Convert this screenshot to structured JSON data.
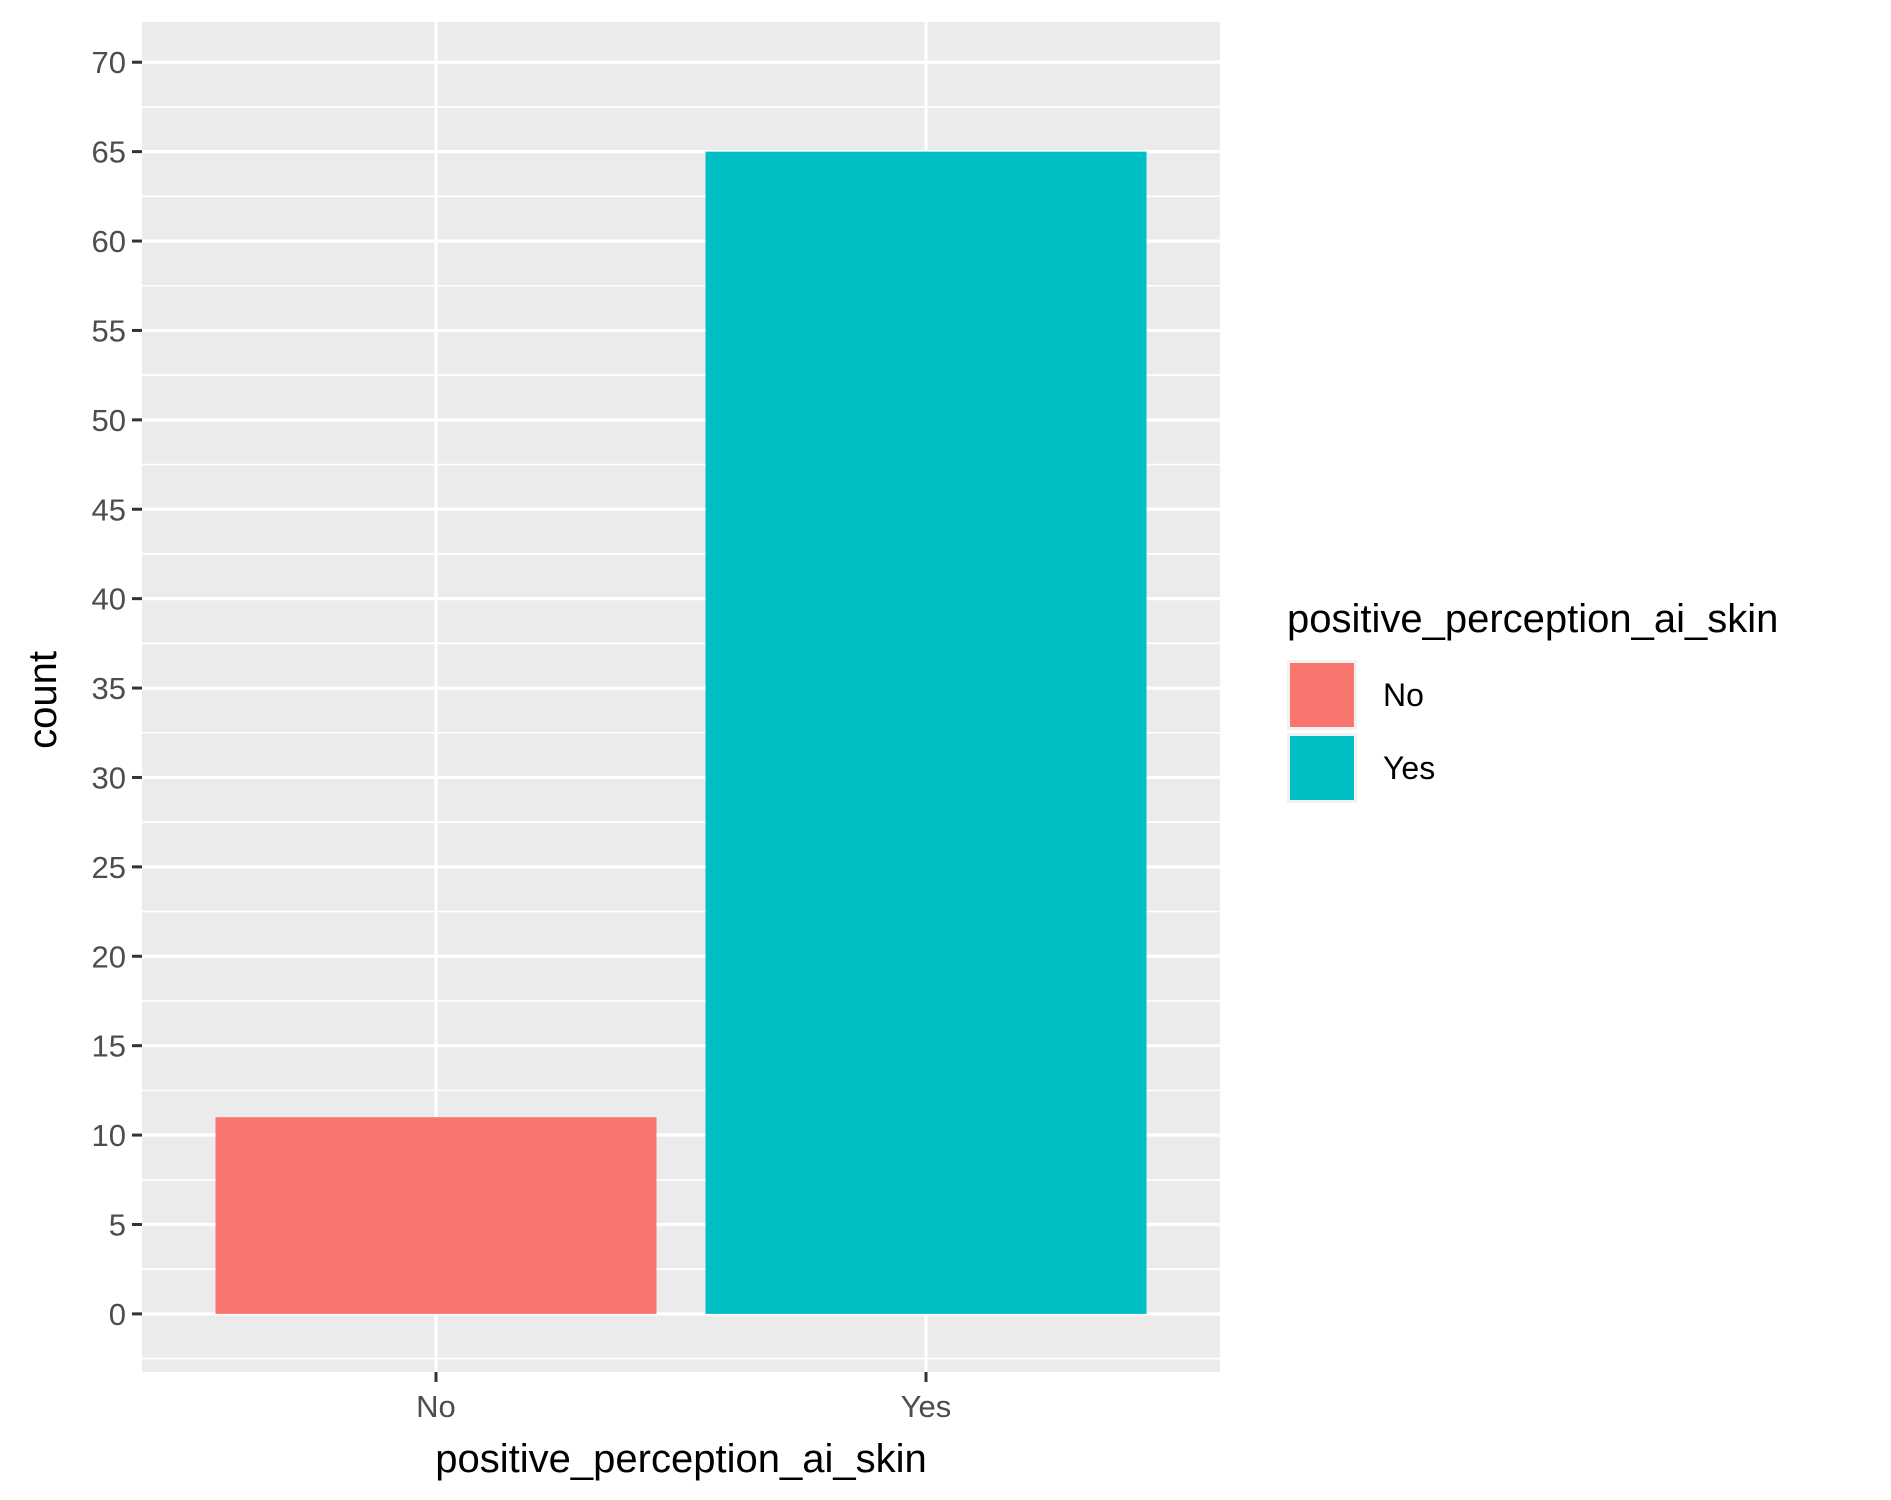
{
  "chart_data": {
    "type": "bar",
    "categories": [
      "No",
      "Yes"
    ],
    "values": [
      11,
      65
    ],
    "xlabel": "positive_perception_ai_skin",
    "ylabel": "count",
    "ylim": [
      -3.25,
      72.25
    ],
    "yticks": [
      0,
      5,
      10,
      15,
      20,
      25,
      30,
      35,
      40,
      45,
      50,
      55,
      60,
      65,
      70
    ],
    "grid": true,
    "panel_background": "#EBEBEB",
    "legend": {
      "title": "positive_perception_ai_skin",
      "placement": "right",
      "entries": [
        {
          "label": "No",
          "color": "#F8766D"
        },
        {
          "label": "Yes",
          "color": "#00BFC4"
        }
      ]
    },
    "colors": [
      "#F8766D",
      "#00BFC4"
    ]
  }
}
